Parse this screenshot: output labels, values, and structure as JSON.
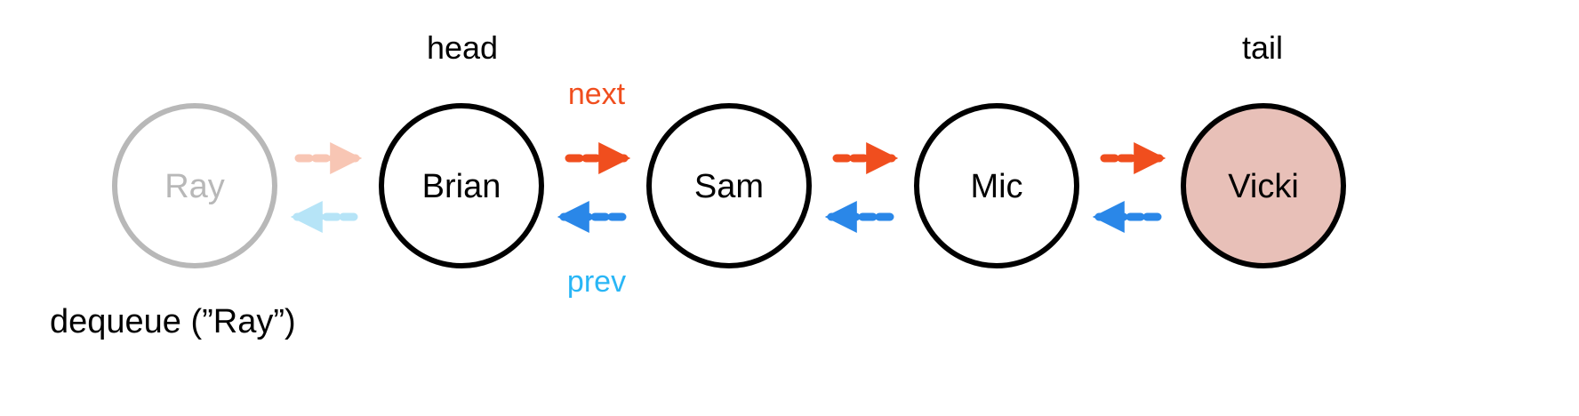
{
  "colors": {
    "next_arrow": "#f04e1e",
    "prev_arrow": "#2a87e8",
    "next_label": "#f04e1e",
    "prev_label": "#29b6f6",
    "removed_node": "#b8b8b8",
    "removed_next_arrow": "#f8c6b4",
    "removed_prev_arrow": "#b6e4f7",
    "tail_fill": "#e8c0b8"
  },
  "labels": {
    "head": "head",
    "tail": "tail",
    "next": "next",
    "prev": "prev"
  },
  "nodes": [
    {
      "name": "Ray",
      "state": "removed"
    },
    {
      "name": "Brian",
      "state": "head"
    },
    {
      "name": "Sam",
      "state": "normal"
    },
    {
      "name": "Mic",
      "state": "normal"
    },
    {
      "name": "Vicki",
      "state": "tail"
    }
  ],
  "caption": "dequeue (”Ray”)"
}
